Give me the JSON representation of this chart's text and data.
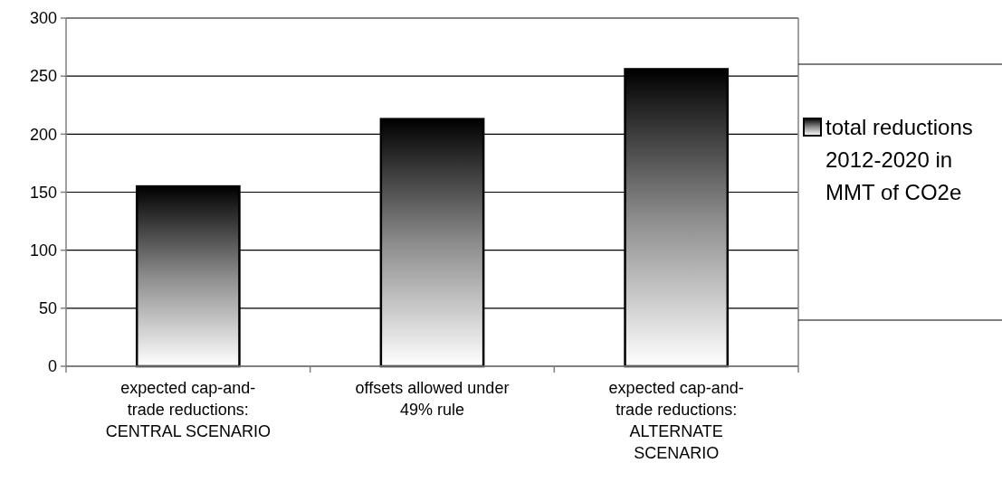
{
  "chart_data": {
    "type": "bar",
    "categories": [
      "expected cap-and-trade reductions: CENTRAL SCENARIO",
      "offsets allowed under 49% rule",
      "expected cap-and-trade reductions: ALTERNATE SCENARIO"
    ],
    "series": [
      {
        "name": "total reductions 2012-2020 in MMT of CO2e",
        "color": "#000000",
        "values": [
          155,
          213,
          256
        ]
      }
    ],
    "ylim": [
      0,
      300
    ],
    "yticks": [
      0,
      50,
      100,
      150,
      200,
      250,
      300
    ],
    "grid": "y",
    "legend": "right"
  }
}
